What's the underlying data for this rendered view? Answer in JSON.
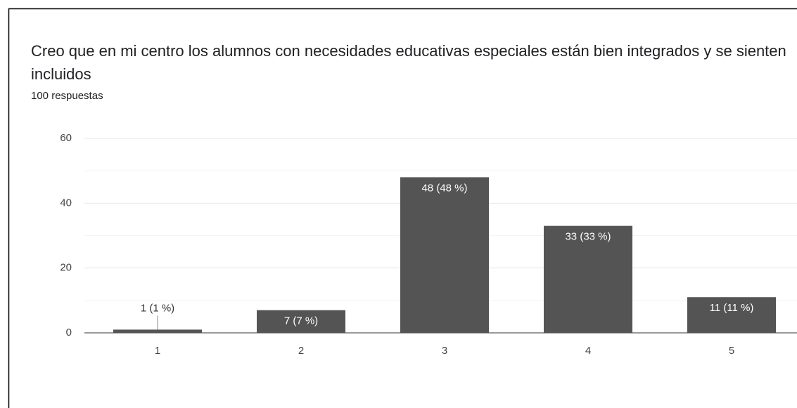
{
  "chart_data": {
    "type": "bar",
    "title": "Creo que en mi centro los alumnos con necesidades educativas especiales están bien integrados y se sienten incluidos",
    "subtitle": "100 respuestas",
    "categories": [
      "1",
      "2",
      "3",
      "4",
      "5"
    ],
    "values": [
      1,
      7,
      48,
      33,
      11
    ],
    "value_labels": [
      "1 (1 %)",
      "7 (7 %)",
      "48 (48 %)",
      "33 (33 %)",
      "11 (11 %)"
    ],
    "color": "#545454",
    "ylim": [
      0,
      60
    ],
    "yticks": [
      0,
      20,
      40,
      60
    ],
    "yminor": [
      10,
      30,
      50
    ],
    "grid": true
  }
}
